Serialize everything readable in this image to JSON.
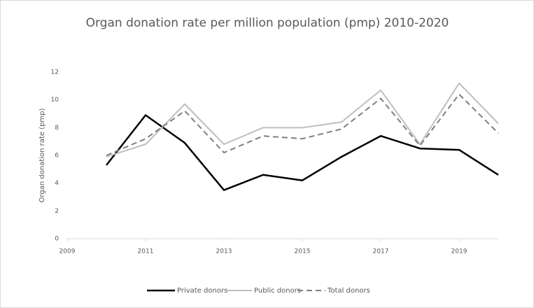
{
  "chart_data": {
    "type": "line",
    "title": "Organ donation rate per million population (pmp) 2010-2020",
    "y_label": "Organ donation rate (pmp)",
    "x": [
      2010,
      2011,
      2012,
      2013,
      2014,
      2015,
      2016,
      2017,
      2018,
      2019,
      2020
    ],
    "series": [
      {
        "name": "Private donors",
        "color": "#000000",
        "dashed": false,
        "values": [
          5.3,
          8.9,
          6.9,
          3.5,
          4.6,
          4.2,
          5.9,
          7.4,
          6.5,
          6.4,
          4.6
        ]
      },
      {
        "name": "Public donors",
        "color": "#bfbfbf",
        "dashed": false,
        "values": [
          5.9,
          6.8,
          9.7,
          6.8,
          8.0,
          8.0,
          8.4,
          10.7,
          6.8,
          11.2,
          8.3
        ]
      },
      {
        "name": "Total donors",
        "color": "#7f7f7f",
        "dashed": true,
        "values": [
          6.0,
          7.2,
          9.2,
          6.2,
          7.4,
          7.2,
          7.9,
          10.1,
          6.7,
          10.4,
          7.6
        ]
      }
    ],
    "xlim": [
      2009,
      2020
    ],
    "xticks": [
      2009,
      2011,
      2013,
      2015,
      2017,
      2019
    ],
    "ylim": [
      0,
      12
    ],
    "yticks": [
      0,
      2,
      4,
      6,
      8,
      10,
      12
    ],
    "grid": false,
    "legend": "bottom"
  }
}
